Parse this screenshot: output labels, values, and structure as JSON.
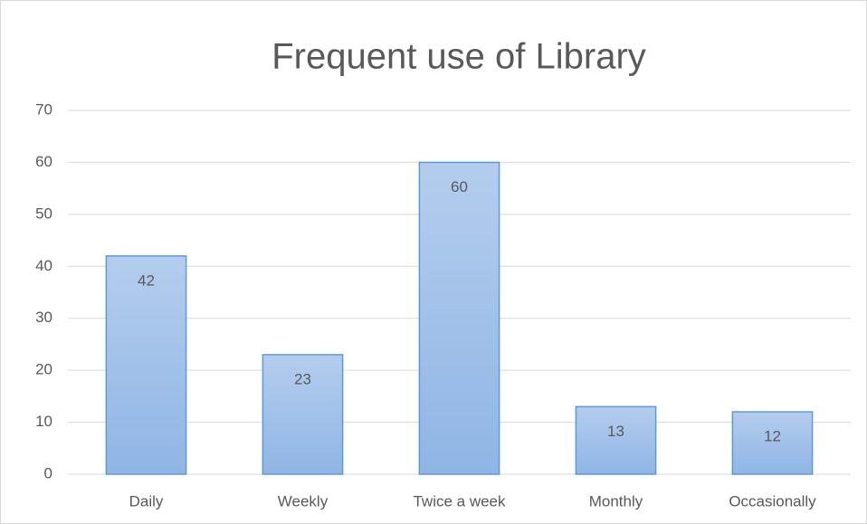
{
  "chart_data": {
    "type": "bar",
    "title": "Frequent use of Library",
    "categories": [
      "Daily",
      "Weekly",
      "Twice a week",
      "Monthly",
      "Occasionally"
    ],
    "values": [
      42,
      23,
      60,
      13,
      12
    ],
    "color": "#5b9bd5",
    "ylim": [
      0,
      70
    ],
    "yticks": [
      0,
      10,
      20,
      30,
      40,
      50,
      60,
      70
    ],
    "grid": true
  }
}
